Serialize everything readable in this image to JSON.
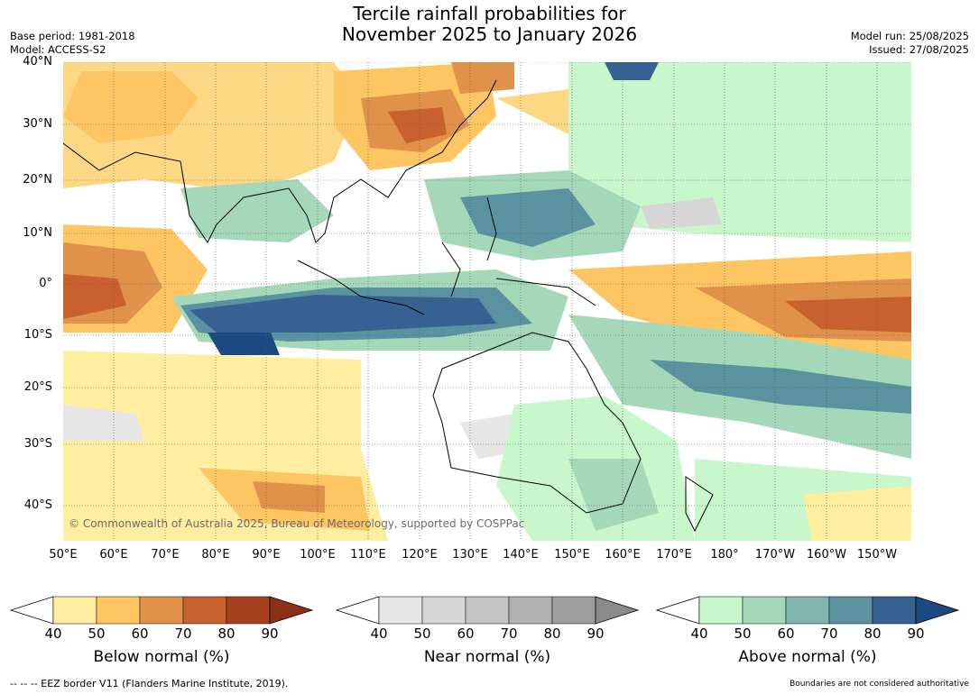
{
  "title": {
    "line1": "Tercile rainfall probabilities for",
    "line2": "November 2025 to January 2026"
  },
  "meta": {
    "base_period": "Base period: 1981-2018",
    "model": "Model: ACCESS-S2",
    "model_run": "Model run: 25/08/2025",
    "issued": "Issued: 27/08/2025"
  },
  "map": {
    "lat_labels": [
      "40°N",
      "30°N",
      "20°N",
      "10°N",
      "0°",
      "10°S",
      "20°S",
      "30°S",
      "40°S"
    ],
    "lon_labels": [
      "50°E",
      "60°E",
      "70°E",
      "80°E",
      "90°E",
      "100°E",
      "110°E",
      "120°E",
      "130°E",
      "140°E",
      "150°E",
      "160°E",
      "170°E",
      "180°",
      "170°W",
      "160°W",
      "150°W"
    ],
    "copyright": "© Commonwealth of Australia 2025, Bureau of Meteorology, supported by COSPPac"
  },
  "colorbars": [
    {
      "title": "Below normal (%)",
      "ticks": [
        "40",
        "50",
        "60",
        "70",
        "80",
        "90"
      ],
      "colors": [
        "#ffeda0",
        "#fdc663",
        "#e0924a",
        "#c9612e",
        "#a5411f",
        "#8c3018"
      ]
    },
    {
      "title": "Near normal (%)",
      "ticks": [
        "40",
        "50",
        "60",
        "70",
        "80",
        "90"
      ],
      "colors": [
        "#e6e6e6",
        "#d6d6d6",
        "#c4c4c4",
        "#b1b1b1",
        "#9e9e9e",
        "#8a8a8a"
      ]
    },
    {
      "title": "Above normal (%)",
      "ticks": [
        "40",
        "50",
        "60",
        "70",
        "80",
        "90"
      ],
      "colors": [
        "#c8f7cc",
        "#a4d8b9",
        "#7fb5ad",
        "#5b92a0",
        "#356193",
        "#1b4a82"
      ]
    }
  ],
  "footer": {
    "eez": "--  --  -- EEZ border V11 (Flanders Marine Institute, 2019).",
    "boundaries": "Boundaries are not considered authoritative"
  }
}
